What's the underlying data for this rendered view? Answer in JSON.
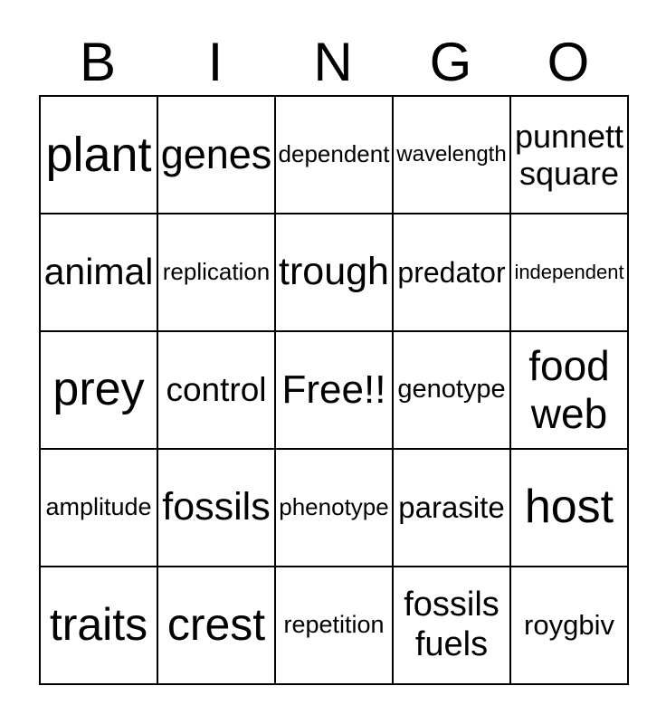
{
  "title": {
    "letters": [
      "B",
      "I",
      "N",
      "G",
      "O"
    ]
  },
  "grid": {
    "rows": [
      {
        "cells": [
          {
            "text": "plant"
          },
          {
            "text": "genes"
          },
          {
            "text": "dependent"
          },
          {
            "text": "wavelength"
          },
          {
            "text": "punnett square"
          }
        ]
      },
      {
        "cells": [
          {
            "text": "animal"
          },
          {
            "text": "replication"
          },
          {
            "text": "trough"
          },
          {
            "text": "predator"
          },
          {
            "text": "independent"
          }
        ]
      },
      {
        "cells": [
          {
            "text": "prey"
          },
          {
            "text": "control"
          },
          {
            "text": "Free!!"
          },
          {
            "text": "genotype"
          },
          {
            "text": "food web"
          }
        ]
      },
      {
        "cells": [
          {
            "text": "amplitude"
          },
          {
            "text": "fossils"
          },
          {
            "text": "phenotype"
          },
          {
            "text": "parasite"
          },
          {
            "text": "host"
          }
        ]
      },
      {
        "cells": [
          {
            "text": "traits"
          },
          {
            "text": "crest"
          },
          {
            "text": "repetition"
          },
          {
            "text": "fossils fuels"
          },
          {
            "text": "roygbiv"
          }
        ]
      }
    ]
  },
  "colors": {
    "background": "#ffffff",
    "text": "#000000",
    "border": "#000000"
  }
}
